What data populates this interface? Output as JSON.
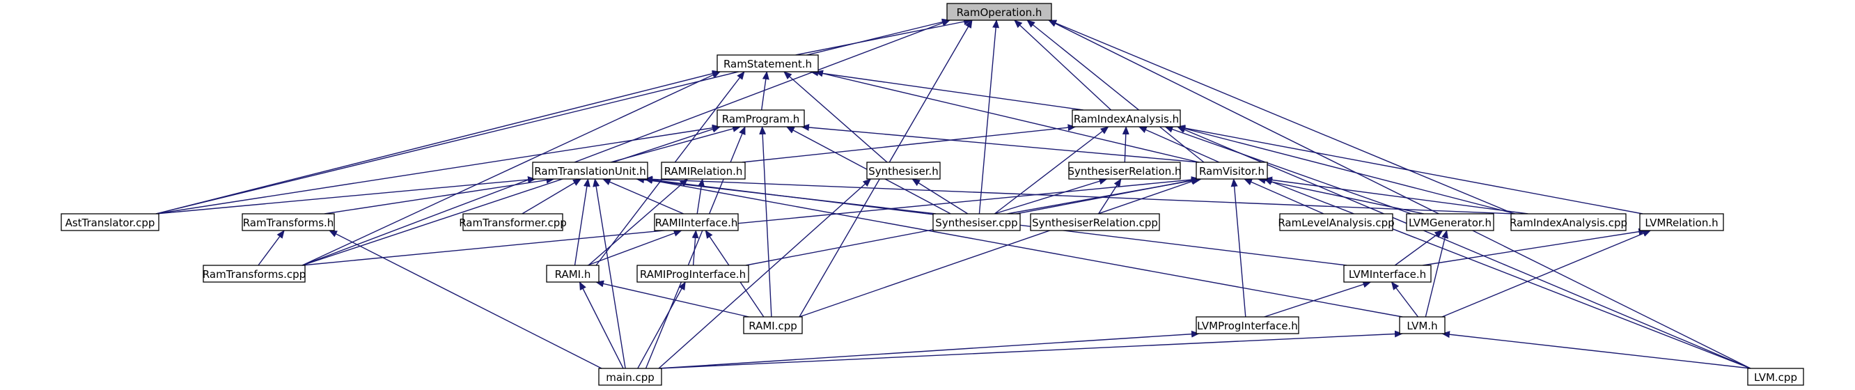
{
  "nodes": [
    {
      "id": "n_ramoperation_h",
      "label": "RamOperation.h",
      "root": true
    },
    {
      "id": "n_ramstatement_h",
      "label": "RamStatement.h"
    },
    {
      "id": "n_ramprogram_h",
      "label": "RamProgram.h"
    },
    {
      "id": "n_ramindexanalysis_h",
      "label": "RamIndexAnalysis.h"
    },
    {
      "id": "n_ramtranslationunit_h",
      "label": "RamTranslationUnit.h"
    },
    {
      "id": "n_ramirelation_h",
      "label": "RAMIRelation.h"
    },
    {
      "id": "n_synthesiser_h",
      "label": "Synthesiser.h"
    },
    {
      "id": "n_synthesiserrelation_h",
      "label": "SynthesiserRelation.h"
    },
    {
      "id": "n_ramvisitor_h",
      "label": "RamVisitor.h"
    },
    {
      "id": "n_asttranslator_cpp",
      "label": "AstTranslator.cpp"
    },
    {
      "id": "n_ramtransforms_h",
      "label": "RamTransforms.h"
    },
    {
      "id": "n_ramtransformer_cpp",
      "label": "RamTransformer.cpp"
    },
    {
      "id": "n_ramiinterface_h",
      "label": "RAMIInterface.h"
    },
    {
      "id": "n_synthesiser_cpp",
      "label": "Synthesiser.cpp"
    },
    {
      "id": "n_synthesiserrelation_cpp",
      "label": "SynthesiserRelation.cpp"
    },
    {
      "id": "n_ramlevelanalysis_cpp",
      "label": "RamLevelAnalysis.cpp"
    },
    {
      "id": "n_lvmgenerator_h",
      "label": "LVMGenerator.h"
    },
    {
      "id": "n_ramindexanalysis_cpp",
      "label": "RamIndexAnalysis.cpp"
    },
    {
      "id": "n_lvmrelation_h",
      "label": "LVMRelation.h"
    },
    {
      "id": "n_ramtransforms_cpp",
      "label": "RamTransforms.cpp"
    },
    {
      "id": "n_rami_h",
      "label": "RAMI.h"
    },
    {
      "id": "n_ramiproginterface_h",
      "label": "RAMIProgInterface.h"
    },
    {
      "id": "n_lvminterface_h",
      "label": "LVMInterface.h"
    },
    {
      "id": "n_rami_cpp",
      "label": "RAMI.cpp"
    },
    {
      "id": "n_lvmproginterface_h",
      "label": "LVMProgInterface.h"
    },
    {
      "id": "n_lvm_h",
      "label": "LVM.h"
    },
    {
      "id": "n_main_cpp",
      "label": "main.cpp"
    },
    {
      "id": "n_lvm_cpp",
      "label": "LVM.cpp"
    }
  ],
  "edges": [
    {
      "from": "n_ramstatement_h",
      "to": "n_ramoperation_h"
    },
    {
      "from": "n_ramindexanalysis_h",
      "to": "n_ramoperation_h"
    },
    {
      "from": "n_ramvisitor_h",
      "to": "n_ramoperation_h"
    },
    {
      "from": "n_asttranslator_cpp",
      "to": "n_ramoperation_h"
    },
    {
      "from": "n_ramtransforms_cpp",
      "to": "n_ramoperation_h"
    },
    {
      "from": "n_synthesiser_cpp",
      "to": "n_ramoperation_h"
    },
    {
      "from": "n_rami_cpp",
      "to": "n_ramoperation_h"
    },
    {
      "from": "n_ramindexanalysis_cpp",
      "to": "n_ramoperation_h"
    },
    {
      "from": "n_lvm_cpp",
      "to": "n_ramoperation_h"
    },
    {
      "from": "n_ramprogram_h",
      "to": "n_ramstatement_h"
    },
    {
      "from": "n_ramindexanalysis_h",
      "to": "n_ramstatement_h"
    },
    {
      "from": "n_ramvisitor_h",
      "to": "n_ramstatement_h"
    },
    {
      "from": "n_asttranslator_cpp",
      "to": "n_ramstatement_h"
    },
    {
      "from": "n_ramtransforms_cpp",
      "to": "n_ramstatement_h"
    },
    {
      "from": "n_synthesiser_h",
      "to": "n_ramstatement_h"
    },
    {
      "from": "n_rami_h",
      "to": "n_ramstatement_h"
    },
    {
      "from": "n_ramtranslationunit_h",
      "to": "n_ramprogram_h"
    },
    {
      "from": "n_ramvisitor_h",
      "to": "n_ramprogram_h"
    },
    {
      "from": "n_asttranslator_cpp",
      "to": "n_ramprogram_h"
    },
    {
      "from": "n_ramtransforms_cpp",
      "to": "n_ramprogram_h"
    },
    {
      "from": "n_synthesiser_cpp",
      "to": "n_ramprogram_h"
    },
    {
      "from": "n_rami_cpp",
      "to": "n_ramprogram_h"
    },
    {
      "from": "n_main_cpp",
      "to": "n_ramprogram_h"
    },
    {
      "from": "n_ramirelation_h",
      "to": "n_ramindexanalysis_h"
    },
    {
      "from": "n_synthesiserrelation_h",
      "to": "n_ramindexanalysis_h"
    },
    {
      "from": "n_ramvisitor_h",
      "to": "n_ramindexanalysis_h"
    },
    {
      "from": "n_synthesiser_cpp",
      "to": "n_ramindexanalysis_h"
    },
    {
      "from": "n_lvmgenerator_h",
      "to": "n_ramindexanalysis_h"
    },
    {
      "from": "n_ramindexanalysis_cpp",
      "to": "n_ramindexanalysis_h"
    },
    {
      "from": "n_lvmrelation_h",
      "to": "n_ramindexanalysis_h"
    },
    {
      "from": "n_lvm_cpp",
      "to": "n_ramindexanalysis_h"
    },
    {
      "from": "n_asttranslator_cpp",
      "to": "n_ramtranslationunit_h"
    },
    {
      "from": "n_ramtransforms_h",
      "to": "n_ramtranslationunit_h"
    },
    {
      "from": "n_ramtransformer_cpp",
      "to": "n_ramtranslationunit_h"
    },
    {
      "from": "n_ramiinterface_h",
      "to": "n_ramtranslationunit_h"
    },
    {
      "from": "n_synthesiser_cpp",
      "to": "n_ramtranslationunit_h"
    },
    {
      "from": "n_ramindexanalysis_cpp",
      "to": "n_ramtranslationunit_h"
    },
    {
      "from": "n_rami_h",
      "to": "n_ramtranslationunit_h"
    },
    {
      "from": "n_lvminterface_h",
      "to": "n_ramtranslationunit_h"
    },
    {
      "from": "n_lvm_h",
      "to": "n_ramtranslationunit_h"
    },
    {
      "from": "n_main_cpp",
      "to": "n_ramtranslationunit_h"
    },
    {
      "from": "n_ramiinterface_h",
      "to": "n_ramirelation_h"
    },
    {
      "from": "n_rami_h",
      "to": "n_ramirelation_h"
    },
    {
      "from": "n_synthesiser_cpp",
      "to": "n_synthesiser_h"
    },
    {
      "from": "n_main_cpp",
      "to": "n_synthesiser_h"
    },
    {
      "from": "n_synthesiser_cpp",
      "to": "n_synthesiserrelation_h"
    },
    {
      "from": "n_synthesiserrelation_cpp",
      "to": "n_synthesiserrelation_h"
    },
    {
      "from": "n_synthesiser_cpp",
      "to": "n_ramvisitor_h"
    },
    {
      "from": "n_ramlevelanalysis_cpp",
      "to": "n_ramvisitor_h"
    },
    {
      "from": "n_lvmgenerator_h",
      "to": "n_ramvisitor_h"
    },
    {
      "from": "n_ramindexanalysis_cpp",
      "to": "n_ramvisitor_h"
    },
    {
      "from": "n_ramtransforms_cpp",
      "to": "n_ramvisitor_h"
    },
    {
      "from": "n_ramiproginterface_h",
      "to": "n_ramvisitor_h"
    },
    {
      "from": "n_rami_cpp",
      "to": "n_ramvisitor_h"
    },
    {
      "from": "n_lvmproginterface_h",
      "to": "n_ramvisitor_h"
    },
    {
      "from": "n_lvm_cpp",
      "to": "n_ramvisitor_h"
    },
    {
      "from": "n_ramtransforms_cpp",
      "to": "n_ramtransforms_h"
    },
    {
      "from": "n_main_cpp",
      "to": "n_ramtransforms_h"
    },
    {
      "from": "n_rami_h",
      "to": "n_ramiinterface_h"
    },
    {
      "from": "n_ramiproginterface_h",
      "to": "n_ramiinterface_h"
    },
    {
      "from": "n_rami_cpp",
      "to": "n_ramiinterface_h"
    },
    {
      "from": "n_lvminterface_h",
      "to": "n_lvmgenerator_h"
    },
    {
      "from": "n_lvm_h",
      "to": "n_lvmgenerator_h"
    },
    {
      "from": "n_lvminterface_h",
      "to": "n_lvmrelation_h"
    },
    {
      "from": "n_lvm_h",
      "to": "n_lvmrelation_h"
    },
    {
      "from": "n_rami_cpp",
      "to": "n_rami_h"
    },
    {
      "from": "n_main_cpp",
      "to": "n_rami_h"
    },
    {
      "from": "n_main_cpp",
      "to": "n_ramiproginterface_h"
    },
    {
      "from": "n_lvmproginterface_h",
      "to": "n_lvminterface_h"
    },
    {
      "from": "n_lvm_h",
      "to": "n_lvminterface_h"
    },
    {
      "from": "n_main_cpp",
      "to": "n_lvmproginterface_h"
    },
    {
      "from": "n_main_cpp",
      "to": "n_lvm_h"
    },
    {
      "from": "n_lvm_cpp",
      "to": "n_lvm_h"
    }
  ]
}
